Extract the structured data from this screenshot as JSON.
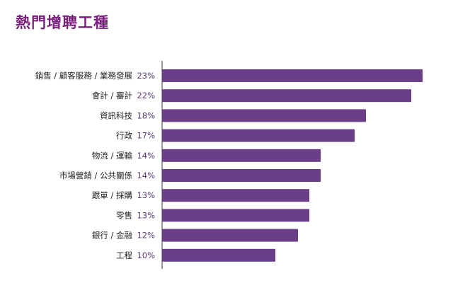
{
  "chart_data": {
    "type": "bar",
    "orientation": "horizontal",
    "title": "熱門增聘工種",
    "categories": [
      "銷售 / 顧客服務 / 業務發展",
      "會計 / 審計",
      "資訊科技",
      "行政",
      "物流 / 運輸",
      "市場營銷 / 公共關係",
      "跟單 / 採購",
      "零售",
      "銀行 / 金融",
      "工程"
    ],
    "values": [
      23,
      22,
      18,
      17,
      14,
      14,
      13,
      13,
      12,
      10
    ],
    "value_labels": [
      "23%",
      "22%",
      "18%",
      "17%",
      "14%",
      "14%",
      "13%",
      "13%",
      "12%",
      "10%"
    ],
    "xlim": [
      0,
      23
    ],
    "xlabel": "",
    "ylabel": "",
    "grid": false,
    "legend": "none",
    "colors": {
      "bar": "#6b3f87",
      "title": "#7a1f7e",
      "value_text": "#5b3a78",
      "axis": "#333333"
    }
  }
}
